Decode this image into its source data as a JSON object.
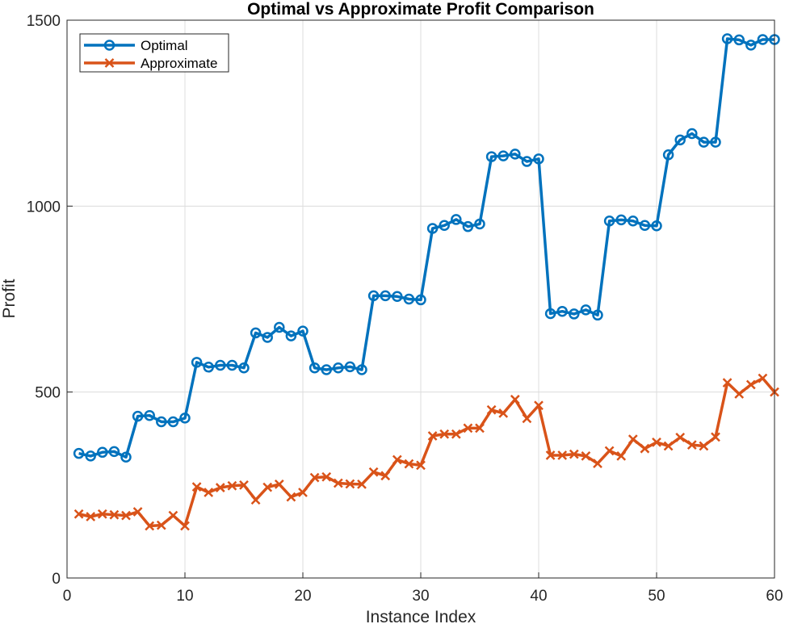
{
  "chart_data": {
    "type": "line",
    "title": "Optimal vs Approximate Profit Comparison",
    "xlabel": "Instance Index",
    "ylabel": "Profit",
    "xlim": [
      0,
      60
    ],
    "ylim": [
      0,
      1500
    ],
    "xticks": [
      0,
      10,
      20,
      30,
      40,
      50,
      60
    ],
    "yticks": [
      0,
      500,
      1000,
      1500
    ],
    "grid": true,
    "legend_position": "top-left",
    "x": [
      1,
      2,
      3,
      4,
      5,
      6,
      7,
      8,
      9,
      10,
      11,
      12,
      13,
      14,
      15,
      16,
      17,
      18,
      19,
      20,
      21,
      22,
      23,
      24,
      25,
      26,
      27,
      28,
      29,
      30,
      31,
      32,
      33,
      34,
      35,
      36,
      37,
      38,
      39,
      40,
      41,
      42,
      43,
      44,
      45,
      46,
      47,
      48,
      49,
      50,
      51,
      52,
      53,
      54,
      55,
      56,
      57,
      58,
      59,
      60
    ],
    "series": [
      {
        "name": "Optimal",
        "color": "#0072BD",
        "marker": "circle",
        "values": [
          335,
          328,
          338,
          340,
          325,
          435,
          437,
          420,
          420,
          430,
          580,
          567,
          572,
          572,
          565,
          659,
          647,
          674,
          651,
          664,
          565,
          560,
          565,
          568,
          560,
          759,
          759,
          757,
          750,
          748,
          940,
          948,
          964,
          945,
          952,
          1133,
          1135,
          1140,
          1120,
          1127,
          711,
          717,
          710,
          721,
          707,
          960,
          963,
          960,
          948,
          947,
          1138,
          1178,
          1195,
          1172,
          1172,
          1450,
          1447,
          1433,
          1448,
          1448
        ]
      },
      {
        "name": "Approximate",
        "color": "#D95319",
        "marker": "x",
        "values": [
          172,
          165,
          172,
          170,
          168,
          178,
          140,
          142,
          168,
          140,
          245,
          230,
          243,
          248,
          250,
          210,
          244,
          252,
          218,
          230,
          270,
          272,
          255,
          253,
          252,
          285,
          275,
          318,
          307,
          303,
          382,
          387,
          387,
          403,
          403,
          452,
          443,
          480,
          429,
          464,
          330,
          330,
          333,
          328,
          308,
          342,
          328,
          373,
          348,
          365,
          355,
          378,
          358,
          355,
          379,
          525,
          495,
          520,
          537,
          500
        ]
      }
    ]
  }
}
